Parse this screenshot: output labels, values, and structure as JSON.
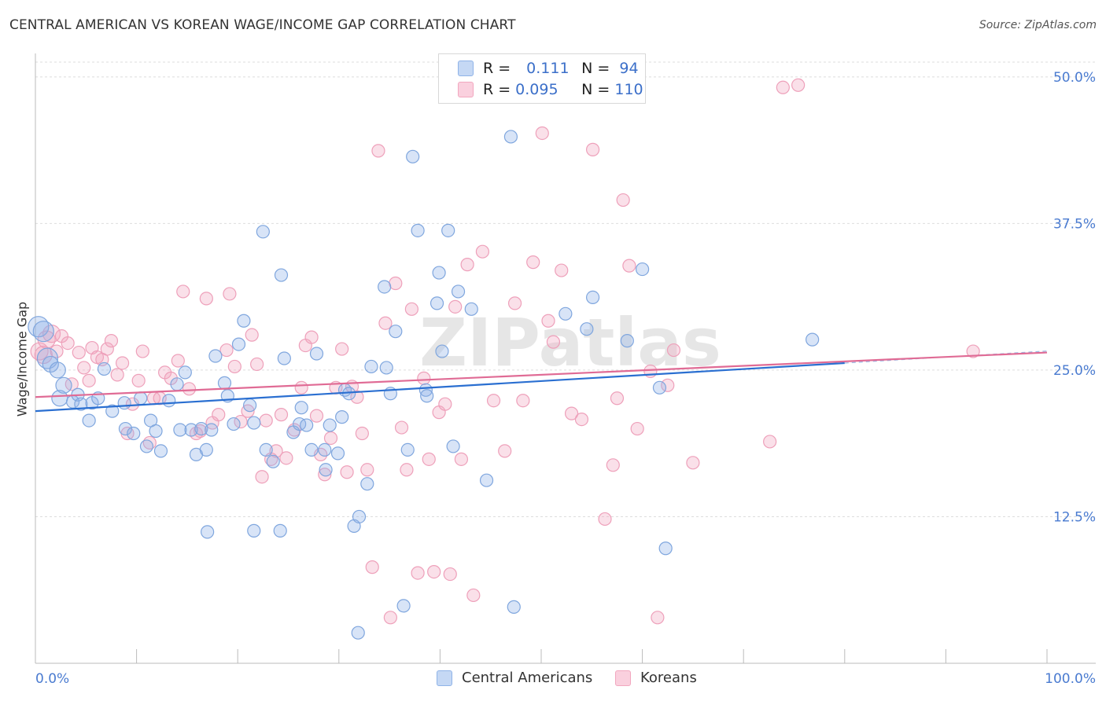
{
  "header": {
    "title": "CENTRAL AMERICAN VS KOREAN WAGE/INCOME GAP CORRELATION CHART",
    "source": "Source: ZipAtlas.com"
  },
  "legend": {
    "row1": {
      "r_label": "R =",
      "r_value": "0.111",
      "n_label": "N =",
      "n_value": "94"
    },
    "row2": {
      "r_label": "R =",
      "r_value": "0.095",
      "n_label": "N =",
      "n_value": "110"
    }
  },
  "bottom_legend": {
    "series1": "Central Americans",
    "series2": "Koreans"
  },
  "watermark": "ZIPatlas",
  "chart_data": {
    "type": "scatter",
    "title": "CENTRAL AMERICAN VS KOREAN WAGE/INCOME GAP CORRELATION CHART",
    "xlabel": "",
    "ylabel": "Wage/Income Gap",
    "xlim": [
      0,
      100
    ],
    "ylim": [
      0,
      52
    ],
    "x_tick_labels": [
      "0.0%",
      "100.0%"
    ],
    "y_ticks": [
      12.5,
      25.0,
      37.5,
      50.0
    ],
    "y_tick_labels": [
      "12.5%",
      "25.0%",
      "37.5%",
      "50.0%"
    ],
    "grid": true,
    "legend_position": "top-center",
    "colors": {
      "central_americans": "#8fb3e8",
      "koreans": "#f2a7bf",
      "blue_line": "#2a6fd1",
      "pink_line": "#e06b95"
    },
    "series": [
      {
        "name": "Central Americans",
        "r": 0.111,
        "n": 94,
        "trend": {
          "x0": 0,
          "y0": 21.5,
          "x1": 80,
          "y1": 25.6
        },
        "points": [
          [
            0.3,
            28.7
          ],
          [
            0.8,
            28.3
          ],
          [
            1.2,
            26.0
          ],
          [
            1.5,
            25.5
          ],
          [
            2.2,
            25.0
          ],
          [
            2.4,
            22.6
          ],
          [
            2.8,
            23.7
          ],
          [
            3.7,
            22.3
          ],
          [
            4.2,
            22.9
          ],
          [
            4.5,
            22.1
          ],
          [
            5.3,
            20.7
          ],
          [
            5.6,
            22.2
          ],
          [
            6.2,
            22.6
          ],
          [
            6.8,
            25.1
          ],
          [
            7.6,
            21.5
          ],
          [
            8.8,
            22.2
          ],
          [
            8.9,
            20.0
          ],
          [
            9.7,
            19.6
          ],
          [
            10.4,
            22.6
          ],
          [
            11.0,
            18.5
          ],
          [
            11.4,
            20.7
          ],
          [
            11.9,
            19.8
          ],
          [
            12.4,
            18.1
          ],
          [
            13.2,
            22.4
          ],
          [
            14.0,
            23.8
          ],
          [
            14.3,
            19.9
          ],
          [
            14.8,
            24.8
          ],
          [
            15.4,
            19.9
          ],
          [
            15.9,
            17.8
          ],
          [
            16.4,
            20.0
          ],
          [
            16.9,
            18.2
          ],
          [
            17.4,
            19.9
          ],
          [
            17.8,
            26.2
          ],
          [
            18.7,
            23.9
          ],
          [
            19.0,
            22.8
          ],
          [
            19.6,
            20.4
          ],
          [
            20.1,
            27.2
          ],
          [
            20.6,
            29.2
          ],
          [
            21.2,
            22.0
          ],
          [
            21.6,
            20.5
          ],
          [
            22.5,
            36.8
          ],
          [
            22.8,
            18.2
          ],
          [
            23.5,
            17.2
          ],
          [
            24.3,
            33.1
          ],
          [
            24.6,
            26.0
          ],
          [
            25.5,
            19.7
          ],
          [
            26.1,
            20.4
          ],
          [
            26.3,
            21.8
          ],
          [
            26.8,
            20.3
          ],
          [
            27.3,
            18.2
          ],
          [
            27.8,
            26.4
          ],
          [
            28.6,
            18.2
          ],
          [
            28.7,
            16.5
          ],
          [
            29.1,
            20.3
          ],
          [
            29.9,
            17.9
          ],
          [
            30.3,
            21.0
          ],
          [
            30.6,
            23.3
          ],
          [
            31.0,
            23.0
          ],
          [
            31.5,
            11.7
          ],
          [
            32.0,
            12.5
          ],
          [
            32.8,
            15.3
          ],
          [
            33.2,
            25.3
          ],
          [
            34.5,
            32.1
          ],
          [
            34.7,
            25.2
          ],
          [
            35.1,
            23.0
          ],
          [
            35.6,
            28.3
          ],
          [
            36.4,
            4.9
          ],
          [
            36.8,
            18.2
          ],
          [
            37.3,
            43.2
          ],
          [
            37.8,
            36.9
          ],
          [
            38.6,
            23.3
          ],
          [
            38.7,
            22.8
          ],
          [
            39.7,
            30.7
          ],
          [
            39.9,
            33.3
          ],
          [
            40.2,
            26.6
          ],
          [
            40.8,
            36.9
          ],
          [
            41.3,
            18.5
          ],
          [
            41.8,
            31.7
          ],
          [
            43.1,
            30.2
          ],
          [
            44.6,
            15.6
          ],
          [
            47.0,
            44.9
          ],
          [
            47.3,
            4.8
          ],
          [
            52.4,
            29.8
          ],
          [
            54.5,
            28.5
          ],
          [
            55.1,
            31.2
          ],
          [
            58.5,
            27.5
          ],
          [
            60.0,
            33.6
          ],
          [
            61.7,
            23.5
          ],
          [
            62.3,
            9.8
          ],
          [
            76.8,
            27.6
          ],
          [
            17.0,
            11.2
          ],
          [
            21.6,
            11.3
          ],
          [
            24.2,
            11.3
          ],
          [
            31.9,
            2.6
          ]
        ]
      },
      {
        "name": "Koreans",
        "r": 0.095,
        "n": 110,
        "trend": {
          "x0": 0,
          "y0": 22.7,
          "x1": 100,
          "y1": 26.5
        },
        "points": [
          [
            0.4,
            26.6
          ],
          [
            0.8,
            26.3
          ],
          [
            1.1,
            27.6
          ],
          [
            1.6,
            28.1
          ],
          [
            2.1,
            26.6
          ],
          [
            2.6,
            27.9
          ],
          [
            3.2,
            27.3
          ],
          [
            3.6,
            23.8
          ],
          [
            4.3,
            26.5
          ],
          [
            4.8,
            25.2
          ],
          [
            5.3,
            24.1
          ],
          [
            5.6,
            26.9
          ],
          [
            6.1,
            26.1
          ],
          [
            6.6,
            25.9
          ],
          [
            7.1,
            26.8
          ],
          [
            7.5,
            27.5
          ],
          [
            8.1,
            24.6
          ],
          [
            8.6,
            25.6
          ],
          [
            9.1,
            19.6
          ],
          [
            9.6,
            22.1
          ],
          [
            10.2,
            24.1
          ],
          [
            10.6,
            26.6
          ],
          [
            11.3,
            18.8
          ],
          [
            11.7,
            22.6
          ],
          [
            12.3,
            22.6
          ],
          [
            12.8,
            24.8
          ],
          [
            13.4,
            24.3
          ],
          [
            14.1,
            25.8
          ],
          [
            14.6,
            31.7
          ],
          [
            15.2,
            23.4
          ],
          [
            15.9,
            19.6
          ],
          [
            16.3,
            19.8
          ],
          [
            16.9,
            31.1
          ],
          [
            17.5,
            20.5
          ],
          [
            18.1,
            21.2
          ],
          [
            18.9,
            26.7
          ],
          [
            19.2,
            31.5
          ],
          [
            19.7,
            25.3
          ],
          [
            20.3,
            20.6
          ],
          [
            21.0,
            21.5
          ],
          [
            21.4,
            28.0
          ],
          [
            21.9,
            25.5
          ],
          [
            22.4,
            15.9
          ],
          [
            22.8,
            20.7
          ],
          [
            23.3,
            17.4
          ],
          [
            23.8,
            18.1
          ],
          [
            24.3,
            21.2
          ],
          [
            24.8,
            17.5
          ],
          [
            25.6,
            19.9
          ],
          [
            26.3,
            23.5
          ],
          [
            26.7,
            27.1
          ],
          [
            27.3,
            27.8
          ],
          [
            27.8,
            21.1
          ],
          [
            28.2,
            17.8
          ],
          [
            28.6,
            16.1
          ],
          [
            29.2,
            19.2
          ],
          [
            29.7,
            23.5
          ],
          [
            30.3,
            26.8
          ],
          [
            30.8,
            16.3
          ],
          [
            31.3,
            23.6
          ],
          [
            31.8,
            22.7
          ],
          [
            32.3,
            19.6
          ],
          [
            32.8,
            16.5
          ],
          [
            33.3,
            8.2
          ],
          [
            33.9,
            43.7
          ],
          [
            34.6,
            29.0
          ],
          [
            35.1,
            3.9
          ],
          [
            35.6,
            32.4
          ],
          [
            36.2,
            20.1
          ],
          [
            36.7,
            16.5
          ],
          [
            37.2,
            30.2
          ],
          [
            37.8,
            7.7
          ],
          [
            38.4,
            24.3
          ],
          [
            38.9,
            17.4
          ],
          [
            39.4,
            7.8
          ],
          [
            39.9,
            21.4
          ],
          [
            40.5,
            22.1
          ],
          [
            41.0,
            7.6
          ],
          [
            41.5,
            30.4
          ],
          [
            42.1,
            17.4
          ],
          [
            42.7,
            34.0
          ],
          [
            43.3,
            5.8
          ],
          [
            44.2,
            35.1
          ],
          [
            45.3,
            22.4
          ],
          [
            46.4,
            18.1
          ],
          [
            47.4,
            30.7
          ],
          [
            48.2,
            22.4
          ],
          [
            49.2,
            34.2
          ],
          [
            50.1,
            45.2
          ],
          [
            50.7,
            29.2
          ],
          [
            51.2,
            27.4
          ],
          [
            52.0,
            33.5
          ],
          [
            53.0,
            21.3
          ],
          [
            54.0,
            20.8
          ],
          [
            55.1,
            43.8
          ],
          [
            56.3,
            12.3
          ],
          [
            57.1,
            16.9
          ],
          [
            57.5,
            22.6
          ],
          [
            58.1,
            39.5
          ],
          [
            58.7,
            33.9
          ],
          [
            59.5,
            20.0
          ],
          [
            60.8,
            24.9
          ],
          [
            61.5,
            3.9
          ],
          [
            62.5,
            23.7
          ],
          [
            63.1,
            26.7
          ],
          [
            65.0,
            17.1
          ],
          [
            72.6,
            18.9
          ],
          [
            73.9,
            49.1
          ],
          [
            75.4,
            49.3
          ],
          [
            92.7,
            26.6
          ]
        ]
      }
    ]
  }
}
